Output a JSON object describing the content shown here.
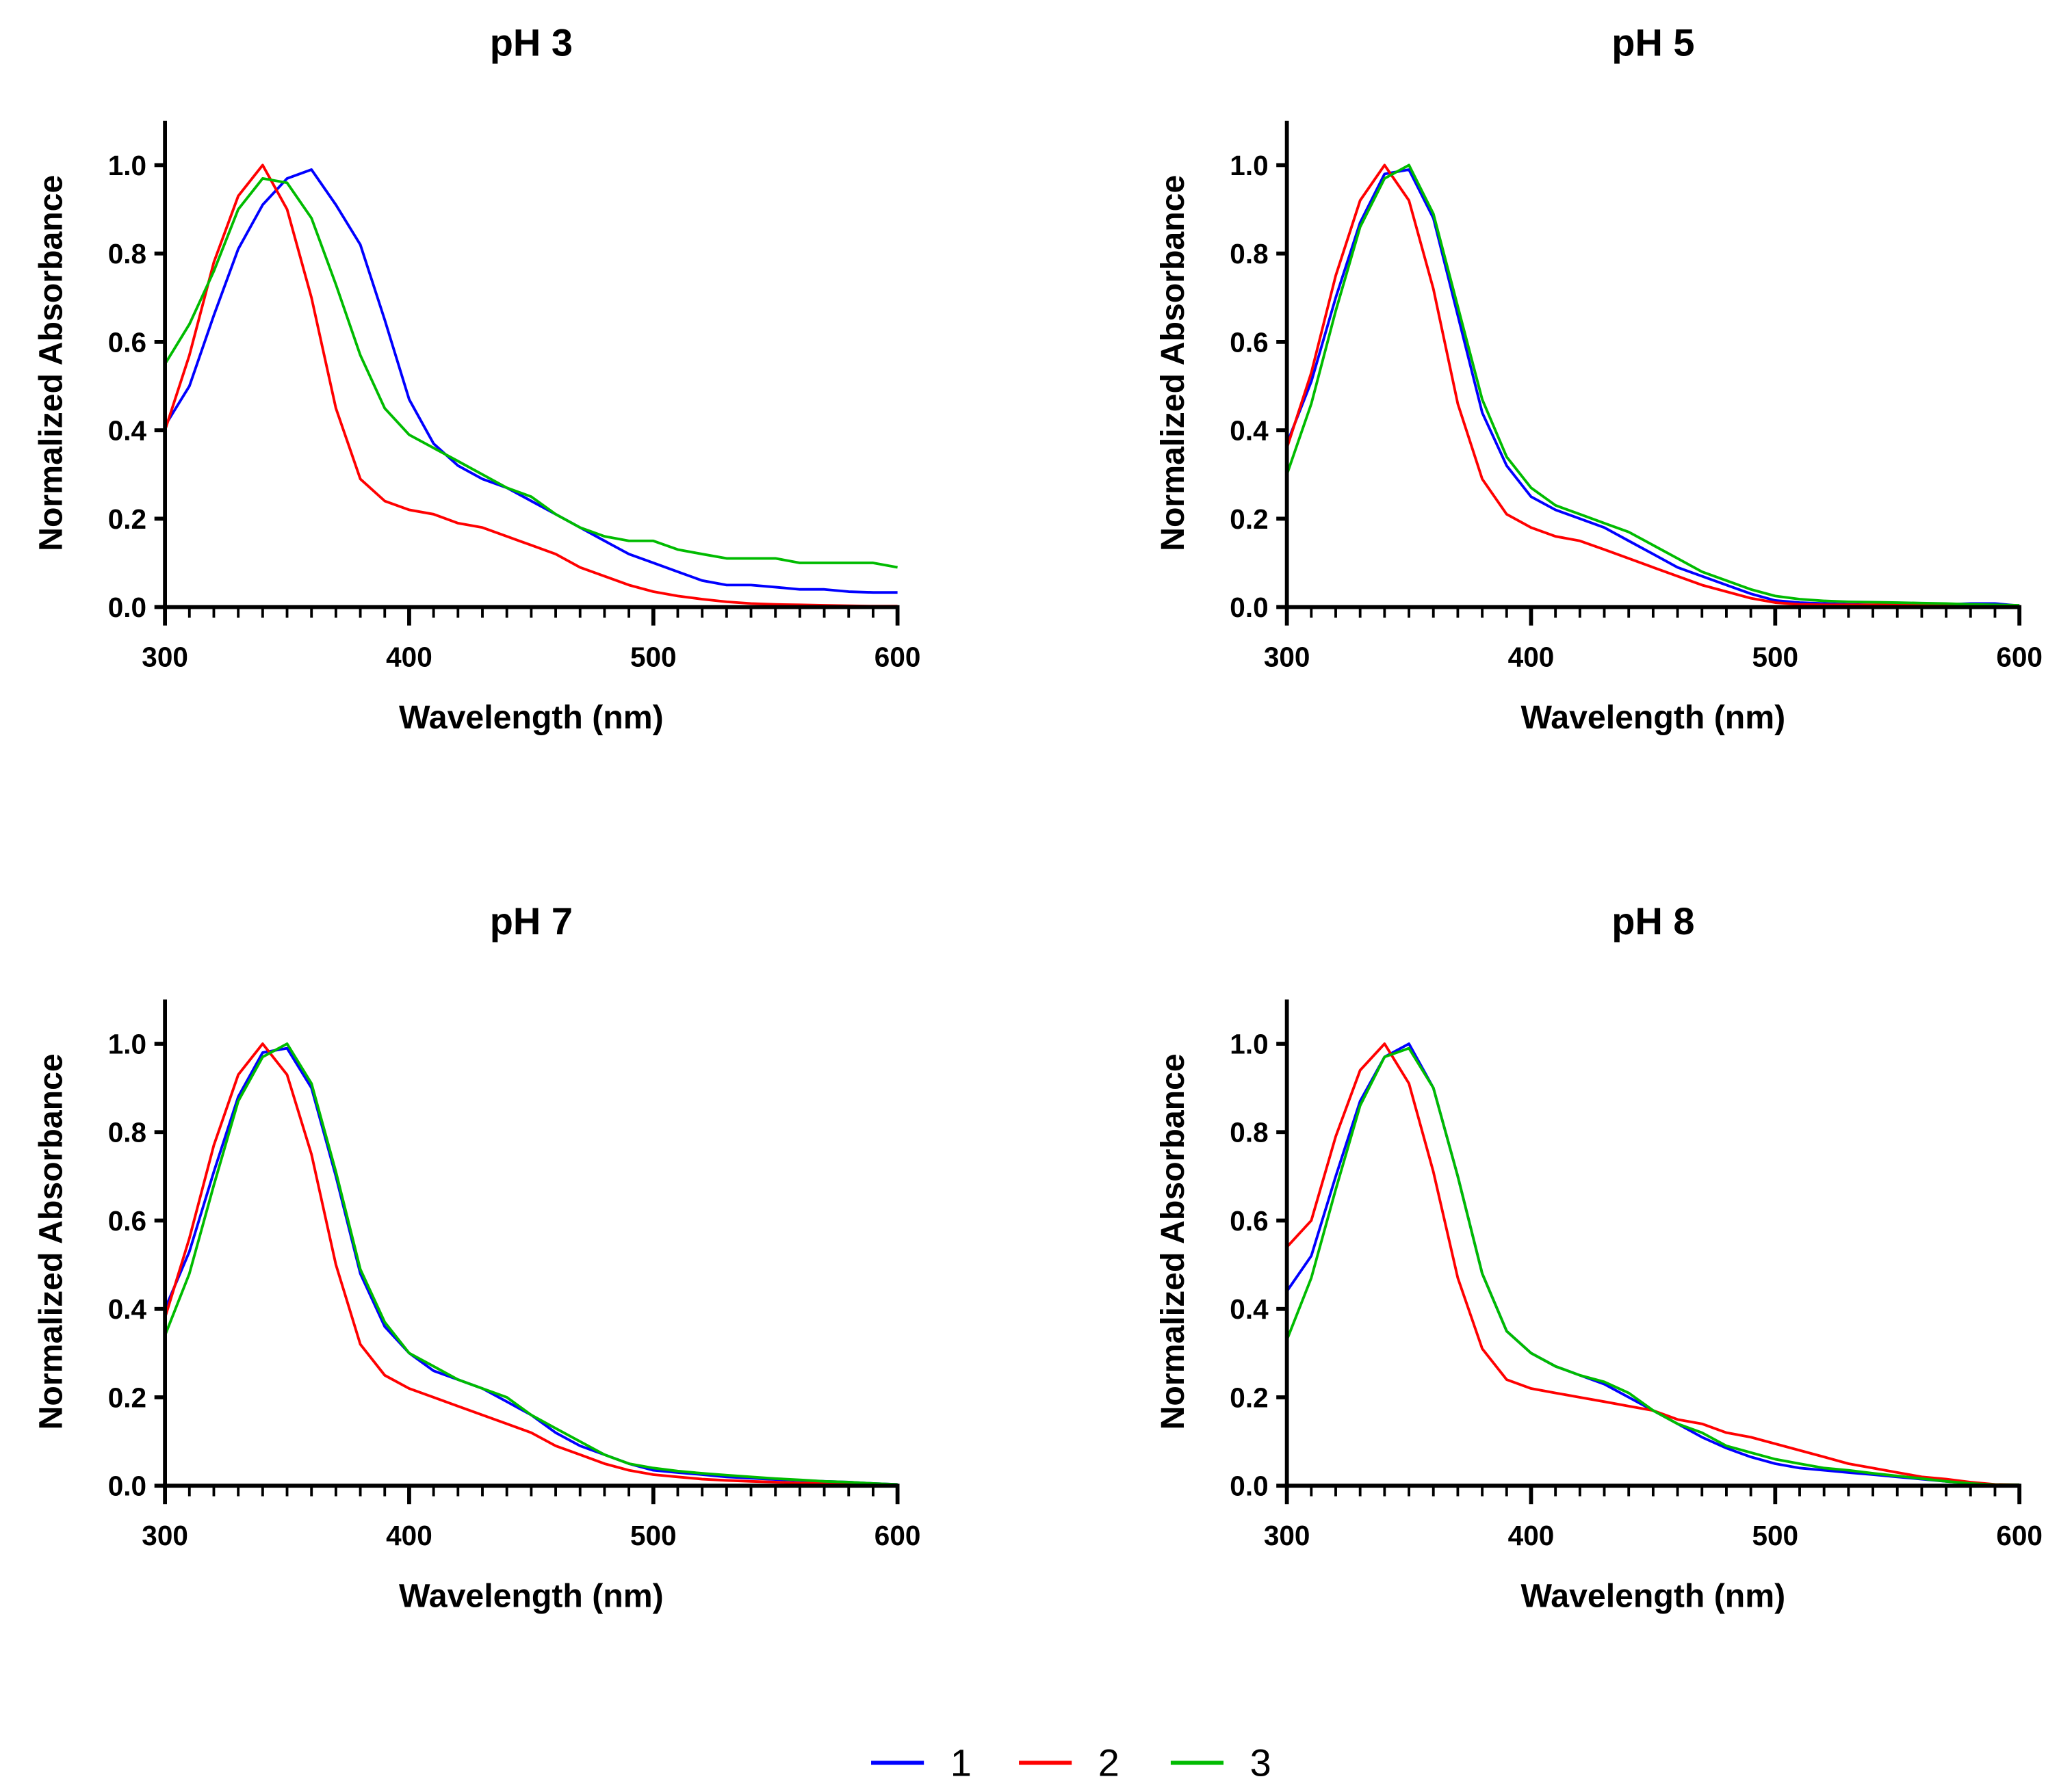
{
  "chart_data": [
    {
      "type": "line",
      "title": "pH 3",
      "xlabel": "Wavelength (nm)",
      "ylabel": "Normalized Absorbance",
      "xlim": [
        300,
        600
      ],
      "ylim": [
        0,
        1.1
      ],
      "xticks": [
        "300",
        "400",
        "500",
        "600"
      ],
      "yticks": [
        "0.0",
        "0.2",
        "0.4",
        "0.6",
        "0.8",
        "1.0"
      ],
      "x": [
        300,
        310,
        320,
        330,
        340,
        350,
        360,
        370,
        380,
        390,
        400,
        410,
        420,
        430,
        440,
        450,
        460,
        470,
        480,
        490,
        500,
        510,
        520,
        530,
        540,
        550,
        560,
        570,
        580,
        590,
        600
      ],
      "series": [
        {
          "name": "1",
          "values": [
            0.41,
            0.5,
            0.66,
            0.81,
            0.91,
            0.97,
            0.99,
            0.91,
            0.82,
            0.65,
            0.47,
            0.37,
            0.32,
            0.29,
            0.27,
            0.24,
            0.21,
            0.18,
            0.15,
            0.12,
            0.1,
            0.08,
            0.06,
            0.05,
            0.05,
            0.045,
            0.04,
            0.04,
            0.035,
            0.033,
            0.033
          ]
        },
        {
          "name": "2",
          "values": [
            0.4,
            0.57,
            0.78,
            0.93,
            1.0,
            0.9,
            0.7,
            0.45,
            0.29,
            0.24,
            0.22,
            0.21,
            0.19,
            0.18,
            0.16,
            0.14,
            0.12,
            0.09,
            0.07,
            0.05,
            0.035,
            0.025,
            0.018,
            0.012,
            0.008,
            0.006,
            0.005,
            0.004,
            0.003,
            0.002,
            0.002
          ]
        },
        {
          "name": "3",
          "values": [
            0.55,
            0.64,
            0.76,
            0.9,
            0.97,
            0.96,
            0.88,
            0.73,
            0.57,
            0.45,
            0.39,
            0.36,
            0.33,
            0.3,
            0.27,
            0.25,
            0.21,
            0.18,
            0.16,
            0.15,
            0.15,
            0.13,
            0.12,
            0.11,
            0.11,
            0.11,
            0.1,
            0.1,
            0.1,
            0.1,
            0.09
          ]
        }
      ]
    },
    {
      "type": "line",
      "title": "pH 5",
      "xlabel": "Wavelength (nm)",
      "ylabel": "Normalized Absorbance",
      "xlim": [
        300,
        600
      ],
      "ylim": [
        0,
        1.1
      ],
      "xticks": [
        "300",
        "400",
        "500",
        "600"
      ],
      "yticks": [
        "0.0",
        "0.2",
        "0.4",
        "0.6",
        "0.8",
        "1.0"
      ],
      "x": [
        300,
        310,
        320,
        330,
        340,
        350,
        360,
        370,
        380,
        390,
        400,
        410,
        420,
        430,
        440,
        450,
        460,
        470,
        480,
        490,
        500,
        510,
        520,
        530,
        540,
        550,
        560,
        570,
        580,
        590,
        600
      ],
      "series": [
        {
          "name": "1",
          "values": [
            0.37,
            0.51,
            0.7,
            0.87,
            0.98,
            0.99,
            0.88,
            0.66,
            0.44,
            0.32,
            0.25,
            0.22,
            0.2,
            0.18,
            0.15,
            0.12,
            0.09,
            0.07,
            0.05,
            0.03,
            0.015,
            0.01,
            0.008,
            0.006,
            0.005,
            0.005,
            0.005,
            0.006,
            0.008,
            0.008,
            0.003
          ]
        },
        {
          "name": "2",
          "values": [
            0.36,
            0.53,
            0.75,
            0.92,
            1.0,
            0.92,
            0.72,
            0.46,
            0.29,
            0.21,
            0.18,
            0.16,
            0.15,
            0.13,
            0.11,
            0.09,
            0.07,
            0.05,
            0.035,
            0.02,
            0.01,
            0.006,
            0.005,
            0.005,
            0.005,
            0.005,
            0.005,
            0.005,
            0.004,
            0.004,
            0.003
          ]
        },
        {
          "name": "3",
          "values": [
            0.3,
            0.46,
            0.67,
            0.86,
            0.97,
            1.0,
            0.89,
            0.68,
            0.47,
            0.34,
            0.27,
            0.23,
            0.21,
            0.19,
            0.17,
            0.14,
            0.11,
            0.08,
            0.06,
            0.04,
            0.025,
            0.018,
            0.014,
            0.012,
            0.011,
            0.01,
            0.009,
            0.008,
            0.006,
            0.005,
            0.004
          ]
        }
      ]
    },
    {
      "type": "line",
      "title": "pH 7",
      "xlabel": "Wavelength (nm)",
      "ylabel": "Normalized Absorbance",
      "xlim": [
        300,
        600
      ],
      "ylim": [
        0,
        1.1
      ],
      "xticks": [
        "300",
        "400",
        "500",
        "600"
      ],
      "yticks": [
        "0.0",
        "0.2",
        "0.4",
        "0.6",
        "0.8",
        "1.0"
      ],
      "x": [
        300,
        310,
        320,
        330,
        340,
        350,
        360,
        370,
        380,
        390,
        400,
        410,
        420,
        430,
        440,
        450,
        460,
        470,
        480,
        490,
        500,
        510,
        520,
        530,
        540,
        550,
        560,
        570,
        580,
        590,
        600
      ],
      "series": [
        {
          "name": "1",
          "values": [
            0.4,
            0.53,
            0.71,
            0.88,
            0.98,
            0.99,
            0.9,
            0.7,
            0.48,
            0.36,
            0.3,
            0.26,
            0.24,
            0.22,
            0.19,
            0.16,
            0.12,
            0.09,
            0.07,
            0.05,
            0.035,
            0.03,
            0.025,
            0.02,
            0.017,
            0.014,
            0.012,
            0.01,
            0.008,
            0.005,
            0.003
          ]
        },
        {
          "name": "2",
          "values": [
            0.38,
            0.56,
            0.77,
            0.93,
            1.0,
            0.93,
            0.75,
            0.5,
            0.32,
            0.25,
            0.22,
            0.2,
            0.18,
            0.16,
            0.14,
            0.12,
            0.09,
            0.07,
            0.05,
            0.035,
            0.025,
            0.02,
            0.015,
            0.012,
            0.01,
            0.008,
            0.006,
            0.005,
            0.004,
            0.003,
            0.002
          ]
        },
        {
          "name": "3",
          "values": [
            0.34,
            0.48,
            0.68,
            0.87,
            0.97,
            1.0,
            0.91,
            0.71,
            0.49,
            0.37,
            0.3,
            0.27,
            0.24,
            0.22,
            0.2,
            0.16,
            0.13,
            0.1,
            0.07,
            0.05,
            0.04,
            0.033,
            0.028,
            0.024,
            0.02,
            0.016,
            0.013,
            0.01,
            0.008,
            0.005,
            0.003
          ]
        }
      ]
    },
    {
      "type": "line",
      "title": "pH 8",
      "xlabel": "Wavelength (nm)",
      "ylabel": "Normalized Absorbance",
      "xlim": [
        300,
        600
      ],
      "ylim": [
        0,
        1.1
      ],
      "xticks": [
        "300",
        "400",
        "500",
        "600"
      ],
      "yticks": [
        "0.0",
        "0.2",
        "0.4",
        "0.6",
        "0.8",
        "1.0"
      ],
      "x": [
        300,
        310,
        320,
        330,
        340,
        350,
        360,
        370,
        380,
        390,
        400,
        410,
        420,
        430,
        440,
        450,
        460,
        470,
        480,
        490,
        500,
        510,
        520,
        530,
        540,
        550,
        560,
        570,
        580,
        590,
        600
      ],
      "series": [
        {
          "name": "1",
          "values": [
            0.44,
            0.52,
            0.7,
            0.87,
            0.97,
            1.0,
            0.9,
            0.7,
            0.48,
            0.35,
            0.3,
            0.27,
            0.25,
            0.23,
            0.2,
            0.17,
            0.14,
            0.11,
            0.085,
            0.065,
            0.05,
            0.04,
            0.035,
            0.03,
            0.025,
            0.02,
            0.015,
            0.01,
            0.005,
            0.002,
            0.002
          ]
        },
        {
          "name": "2",
          "values": [
            0.54,
            0.6,
            0.79,
            0.94,
            1.0,
            0.91,
            0.71,
            0.47,
            0.31,
            0.24,
            0.22,
            0.21,
            0.2,
            0.19,
            0.18,
            0.17,
            0.15,
            0.14,
            0.12,
            0.11,
            0.095,
            0.08,
            0.065,
            0.05,
            0.04,
            0.03,
            0.02,
            0.015,
            0.008,
            0.003,
            0.002
          ]
        },
        {
          "name": "3",
          "values": [
            0.33,
            0.47,
            0.67,
            0.86,
            0.97,
            0.99,
            0.9,
            0.7,
            0.48,
            0.35,
            0.3,
            0.27,
            0.25,
            0.235,
            0.21,
            0.17,
            0.14,
            0.12,
            0.09,
            0.075,
            0.06,
            0.05,
            0.04,
            0.035,
            0.028,
            0.022,
            0.016,
            0.01,
            0.005,
            0.002,
            0.002
          ]
        }
      ]
    }
  ],
  "legend": {
    "placement": "bottom-center",
    "entries": [
      {
        "label": "1",
        "color": "#0000ff"
      },
      {
        "label": "2",
        "color": "#ff0000"
      },
      {
        "label": "3",
        "color": "#00bb00"
      }
    ]
  }
}
